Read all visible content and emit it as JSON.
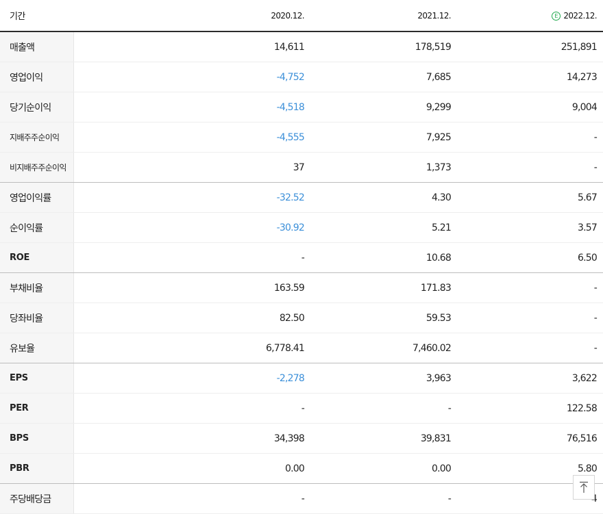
{
  "header": {
    "label": "기간",
    "years": [
      "2020.12.",
      "2021.12.",
      "2022.12."
    ],
    "estimate_badge": "E",
    "estimate_color": "#1fa84c"
  },
  "rows": [
    {
      "label": "매출액",
      "values": [
        "14,611",
        "178,519",
        "251,891"
      ],
      "negative": [
        false,
        false,
        false
      ]
    },
    {
      "label": "영업이익",
      "values": [
        "-4,752",
        "7,685",
        "14,273"
      ],
      "negative": [
        true,
        false,
        false
      ]
    },
    {
      "label": "당기순이익",
      "values": [
        "-4,518",
        "9,299",
        "9,004"
      ],
      "negative": [
        true,
        false,
        false
      ]
    },
    {
      "label": "지배주주순이익",
      "values": [
        "-4,555",
        "7,925",
        "-"
      ],
      "negative": [
        true,
        false,
        false
      ]
    },
    {
      "label": "비지배주주순이익",
      "values": [
        "37",
        "1,373",
        "-"
      ],
      "negative": [
        false,
        false,
        false
      ]
    },
    {
      "label": "영업이익률",
      "values": [
        "-32.52",
        "4.30",
        "5.67"
      ],
      "negative": [
        true,
        false,
        false
      ]
    },
    {
      "label": "순이익률",
      "values": [
        "-30.92",
        "5.21",
        "3.57"
      ],
      "negative": [
        true,
        false,
        false
      ]
    },
    {
      "label": "ROE",
      "values": [
        "-",
        "10.68",
        "6.50"
      ],
      "negative": [
        false,
        false,
        false
      ]
    },
    {
      "label": "부채비율",
      "values": [
        "163.59",
        "171.83",
        "-"
      ],
      "negative": [
        false,
        false,
        false
      ]
    },
    {
      "label": "당좌비율",
      "values": [
        "82.50",
        "59.53",
        "-"
      ],
      "negative": [
        false,
        false,
        false
      ]
    },
    {
      "label": "유보율",
      "values": [
        "6,778.41",
        "7,460.02",
        "-"
      ],
      "negative": [
        false,
        false,
        false
      ]
    },
    {
      "label": "EPS",
      "values": [
        "-2,278",
        "3,963",
        "3,622"
      ],
      "negative": [
        true,
        false,
        false
      ]
    },
    {
      "label": "PER",
      "values": [
        "-",
        "-",
        "122.58"
      ],
      "negative": [
        false,
        false,
        false
      ]
    },
    {
      "label": "BPS",
      "values": [
        "34,398",
        "39,831",
        "76,516"
      ],
      "negative": [
        false,
        false,
        false
      ]
    },
    {
      "label": "PBR",
      "values": [
        "0.00",
        "0.00",
        "5.80"
      ],
      "negative": [
        false,
        false,
        false
      ]
    },
    {
      "label": "주당배당금",
      "values": [
        "-",
        "-",
        "4"
      ],
      "negative": [
        false,
        false,
        false
      ]
    }
  ],
  "colors": {
    "negative": "#3b8fd9",
    "label_bg": "#f6f6f6",
    "header_rule": "#2b2b2b"
  },
  "scroll_top_icon": "arrow-up-to-top-icon"
}
